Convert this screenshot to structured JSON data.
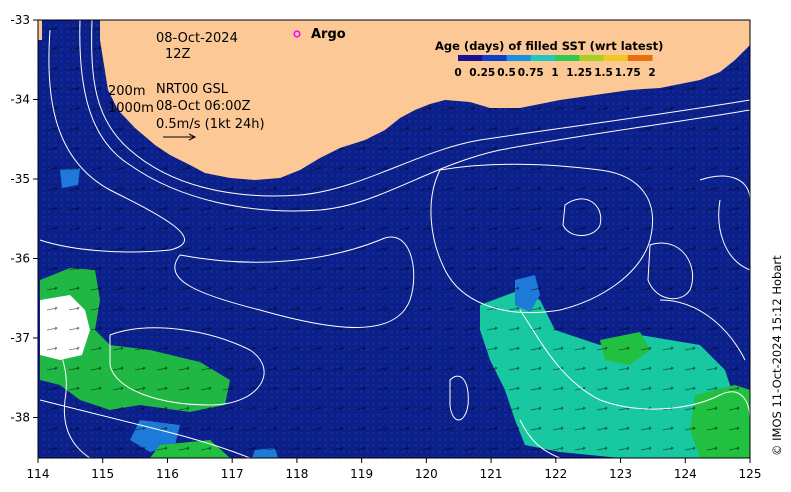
{
  "map": {
    "date_line1": "08-Oct-2024",
    "date_line2": "12Z",
    "contour_label_200": "200m",
    "contour_label_1000": "1000m",
    "product_label": "NRT00 GSL",
    "product_time": "08-Oct 06:00Z",
    "velocity_scale": "0.5m/s (1kt 24h)",
    "argo_label": "Argo",
    "credit": "© IMOS 11-Oct-2024 15:12 Hobart",
    "x_ticks": [
      "114",
      "115",
      "116",
      "117",
      "118",
      "119",
      "120",
      "121",
      "122",
      "123",
      "124",
      "125"
    ],
    "y_ticks": [
      "-33",
      "-34",
      "-35",
      "-36",
      "-37",
      "-38"
    ],
    "colors": {
      "ocean": "#0c1e88",
      "land": "#fbc896",
      "argo": "#ff00ff",
      "contour": "#ffffff",
      "sst_age_green": "#22c040",
      "sst_age_teal": "#18c8a0",
      "sst_age_blue": "#1e7ad8"
    }
  },
  "colorbar": {
    "title": "Age (days) of filled SST (wrt latest)",
    "tick_labels": [
      "0",
      "0.25",
      "0.5",
      "0.75",
      "1",
      "1.25",
      "1.5",
      "1.75",
      "2"
    ],
    "colors": [
      "#1a1090",
      "#1040c8",
      "#1890e0",
      "#20c8c0",
      "#30c850",
      "#a8d020",
      "#f0c820",
      "#e87010",
      "#a01010"
    ]
  }
}
